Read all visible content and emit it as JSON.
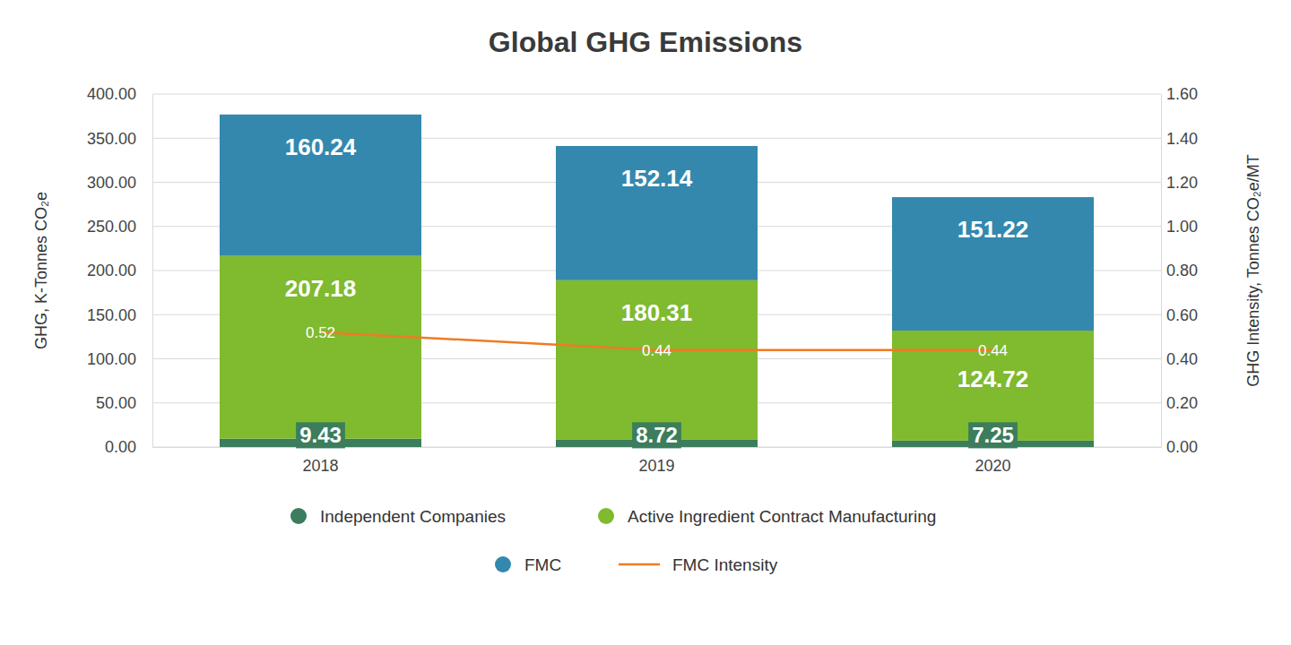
{
  "chart_data": {
    "type": "bar",
    "title": "Global GHG Emissions",
    "y_label": "GHG, K-Tonnes CO₂e",
    "y2_label": "GHG Intensity, Tonnes CO₂e/MT",
    "categories": [
      "2018",
      "2019",
      "2020"
    ],
    "series": [
      {
        "name": "Independent Companies",
        "color": "#3b7d5c",
        "type": "bar",
        "values": [
          9.43,
          8.72,
          7.25
        ]
      },
      {
        "name": "Active Ingredient Contract Manufacturing",
        "color": "#7fba2f",
        "type": "bar",
        "values": [
          207.18,
          180.31,
          124.72
        ]
      },
      {
        "name": "FMC",
        "color": "#3488ad",
        "type": "bar",
        "values": [
          160.24,
          152.14,
          151.22
        ]
      },
      {
        "name": "FMC Intensity",
        "color": "#f07b23",
        "type": "line",
        "axis": "y2",
        "values": [
          0.52,
          0.44,
          0.44
        ]
      }
    ],
    "stacked": true,
    "data_labels": true,
    "grid": true,
    "legend": "bottom",
    "ylim": [
      0,
      400
    ],
    "yticks": [
      {
        "value": 0,
        "label": "0.00"
      },
      {
        "value": 50,
        "label": "50.00"
      },
      {
        "value": 100,
        "label": "100.00"
      },
      {
        "value": 150,
        "label": "150.00"
      },
      {
        "value": 200,
        "label": "200.00"
      },
      {
        "value": 250,
        "label": "250.00"
      },
      {
        "value": 300,
        "label": "300.00"
      },
      {
        "value": 350,
        "label": "350.00"
      },
      {
        "value": 400,
        "label": "400.00"
      }
    ],
    "y2lim": [
      0,
      1.6
    ],
    "y2ticks": [
      {
        "value": 0,
        "label": "0.00"
      },
      {
        "value": 0.2,
        "label": "0.20"
      },
      {
        "value": 0.4,
        "label": "0.40"
      },
      {
        "value": 0.6,
        "label": "0.60"
      },
      {
        "value": 0.8,
        "label": "0.80"
      },
      {
        "value": 1,
        "label": "1.00"
      },
      {
        "value": 1.2,
        "label": "1.20"
      },
      {
        "value": 1.4,
        "label": "1.40"
      },
      {
        "value": 1.6,
        "label": "1.60"
      }
    ]
  }
}
